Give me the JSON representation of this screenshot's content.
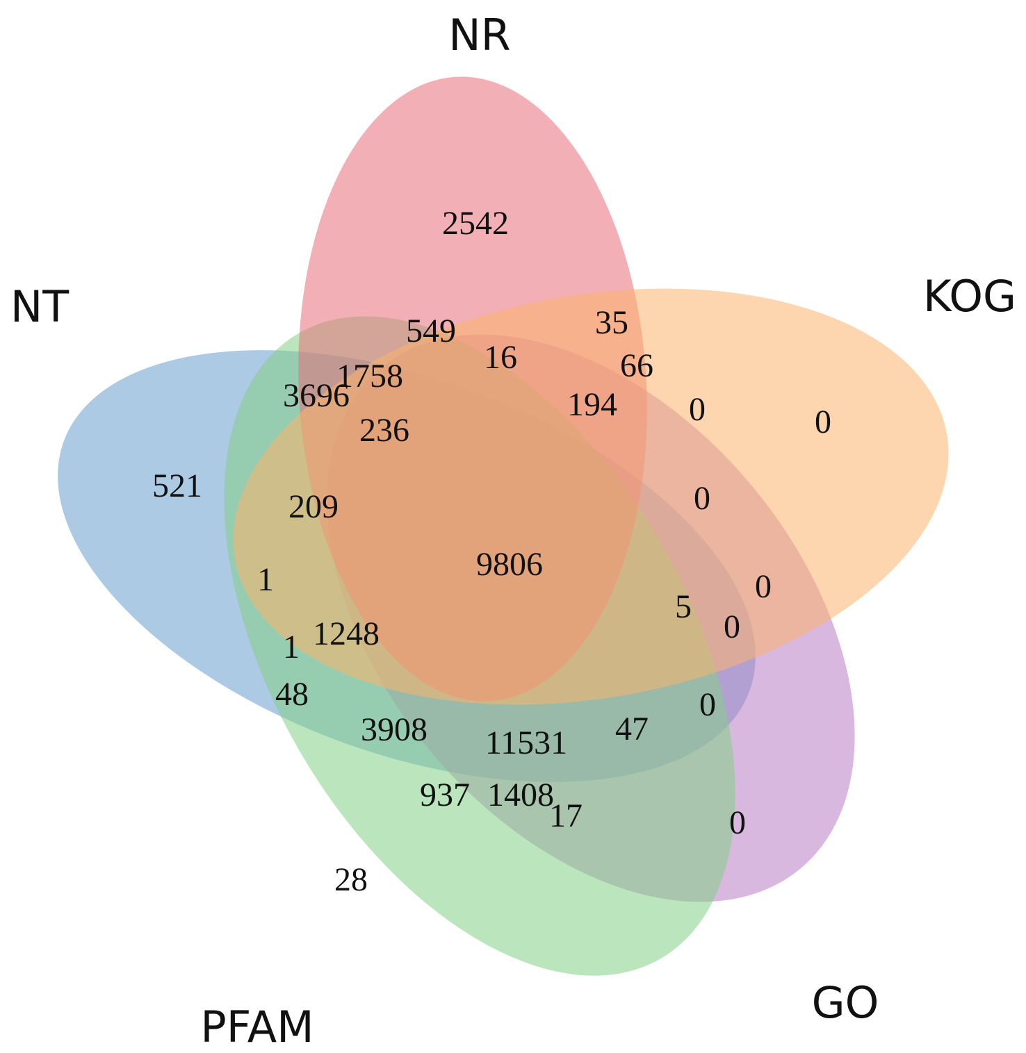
{
  "sets": [
    {
      "id": "nr",
      "label": "NR",
      "color": "#e8707a"
    },
    {
      "id": "kog",
      "label": "KOG",
      "color": "#fbb36b"
    },
    {
      "id": "go",
      "label": "GO",
      "color": "#b87dc4"
    },
    {
      "id": "pfam",
      "label": "PFAM",
      "color": "#84cf85"
    },
    {
      "id": "nt",
      "label": "NT",
      "color": "#6a9fd0"
    }
  ],
  "counts": {
    "nr_only": "2542",
    "kog_only": "0",
    "go_only": "0",
    "pfam_only": "28",
    "nt_only": "521",
    "c549": "549",
    "c35": "35",
    "c16": "16",
    "c66": "66",
    "c1758": "1758",
    "c3696": "3696",
    "c194": "194",
    "c236": "236",
    "c0a": "0",
    "c0b": "0",
    "c209": "209",
    "center": "9806",
    "c1a": "1",
    "c5": "5",
    "c0c": "0",
    "c0d": "0",
    "c1248": "1248",
    "c1b": "1",
    "c48": "48",
    "c0e": "0",
    "c3908": "3908",
    "c11531": "11531",
    "c47": "47",
    "c937": "937",
    "c1408": "1408",
    "c17": "17"
  }
}
